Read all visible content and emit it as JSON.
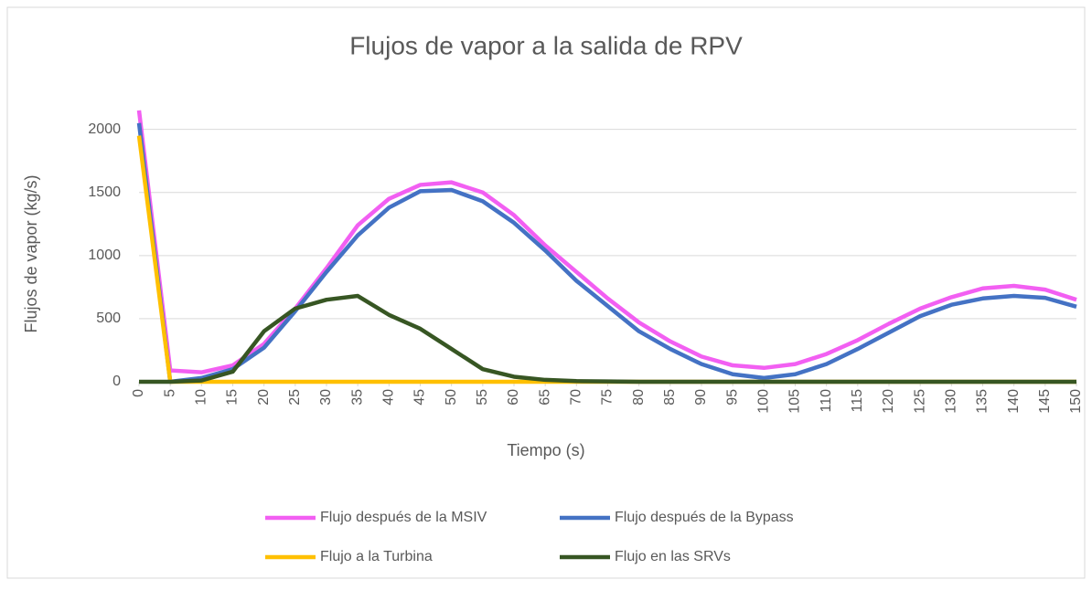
{
  "chart_data": {
    "type": "line",
    "title": "Flujos de vapor a la salida de RPV",
    "x_label": "Tiempo (s)",
    "y_label": "Flujos de vapor (kg/s)",
    "x": [
      0,
      5,
      10,
      15,
      20,
      25,
      30,
      35,
      40,
      45,
      50,
      55,
      60,
      65,
      70,
      75,
      80,
      85,
      90,
      95,
      100,
      105,
      110,
      115,
      120,
      125,
      130,
      135,
      140,
      145,
      150
    ],
    "xlim": [
      0,
      150
    ],
    "xticks": [
      0,
      5,
      10,
      15,
      20,
      25,
      30,
      35,
      40,
      45,
      50,
      55,
      60,
      65,
      70,
      75,
      80,
      85,
      90,
      95,
      100,
      105,
      110,
      115,
      120,
      125,
      130,
      135,
      140,
      145,
      150
    ],
    "ylim": [
      0,
      2200
    ],
    "yticks": [
      0,
      500,
      1000,
      1500,
      2000
    ],
    "grid": true,
    "legend": "bottom",
    "series": [
      {
        "name": "Flujo después de la MSIV",
        "color": "#f25ff2",
        "values": [
          2150,
          90,
          75,
          130,
          300,
          580,
          900,
          1240,
          1450,
          1560,
          1580,
          1500,
          1320,
          1080,
          870,
          660,
          470,
          320,
          200,
          130,
          110,
          140,
          220,
          330,
          460,
          580,
          670,
          740,
          760,
          730,
          650
        ]
      },
      {
        "name": "Flujo después de la Bypass",
        "color": "#4472c4",
        "values": [
          2050,
          0,
          30,
          100,
          270,
          560,
          870,
          1160,
          1380,
          1510,
          1520,
          1430,
          1260,
          1040,
          800,
          600,
          400,
          260,
          140,
          60,
          30,
          60,
          140,
          260,
          390,
          520,
          610,
          660,
          680,
          665,
          595
        ]
      },
      {
        "name": "Flujo a la Turbina",
        "color": "#ffc000",
        "values": [
          1950,
          0,
          0,
          0,
          0,
          0,
          0,
          0,
          0,
          0,
          0,
          0,
          0,
          0,
          0,
          0,
          0,
          0,
          0,
          0,
          0,
          0,
          0,
          0,
          0,
          0,
          0,
          0,
          0,
          0,
          0
        ]
      },
      {
        "name": "Flujo en las SRVs",
        "color": "#375623",
        "values": [
          0,
          0,
          10,
          80,
          400,
          580,
          650,
          680,
          530,
          420,
          260,
          100,
          40,
          15,
          5,
          3,
          0,
          0,
          0,
          0,
          0,
          0,
          0,
          0,
          0,
          0,
          0,
          0,
          0,
          0,
          0
        ]
      }
    ]
  }
}
